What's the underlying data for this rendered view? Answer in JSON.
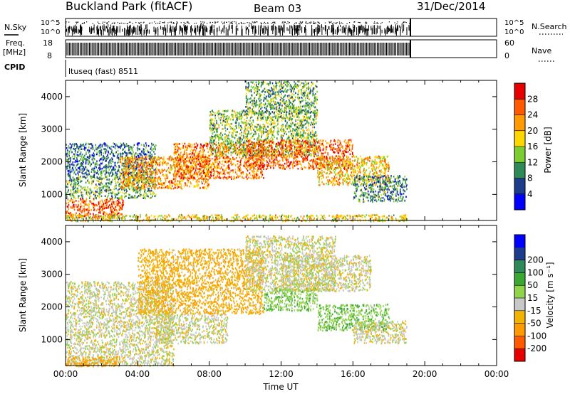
{
  "header": {
    "title": "Buckland Park (fitACF)",
    "beam": "Beam 03",
    "date": "31/Dec/2014"
  },
  "noise_panel": {
    "left_label": "N.Sky",
    "right_label": "N.Search",
    "ticks": [
      "10^5",
      "10^0"
    ]
  },
  "freq_panel": {
    "left_label": "Freq.",
    "left_unit": "[MHz]",
    "right_label": "Nave",
    "left_ticks": [
      "18",
      "8"
    ],
    "right_ticks": [
      "60",
      "0"
    ]
  },
  "cpid": {
    "label": "CPID",
    "value": "ltuseq (fast) 8511"
  },
  "colors": {
    "power_scale": [
      "#0000ff",
      "#1e3c8c",
      "#2e8b57",
      "#7ccd32",
      "#ffd700",
      "#ff9a00",
      "#ff5a00",
      "#e60000"
    ],
    "velocity_scale": [
      "#e60000",
      "#ff5a00",
      "#ff9a00",
      "#f0b400",
      "#c8c8c8",
      "#8fd44a",
      "#3aa832",
      "#2e8b57",
      "#1e3c8c",
      "#0000ff"
    ]
  },
  "chart_data": [
    {
      "type": "heatmap",
      "name": "power",
      "ylabel": "Slant Range [km]",
      "yticks": [
        "1000",
        "2000",
        "3000",
        "4000"
      ],
      "ylim": [
        200,
        4500
      ],
      "xlim": [
        0,
        24
      ],
      "data_end_hour": 19.2,
      "colorbar": {
        "label": "Power [dB]",
        "ticks": [
          "4",
          "8",
          "12",
          "16",
          "20",
          "24",
          "28"
        ],
        "range": [
          0,
          30
        ]
      },
      "regions": [
        {
          "t0": 0.0,
          "t1": 3.2,
          "r0": 300,
          "r1": 900,
          "level": 26
        },
        {
          "t0": 0.0,
          "t1": 5.0,
          "r0": 900,
          "r1": 1600,
          "level": 12
        },
        {
          "t0": 0.0,
          "t1": 5.0,
          "r0": 1600,
          "r1": 2600,
          "level": 8
        },
        {
          "t0": 3.0,
          "t1": 8.0,
          "r0": 1200,
          "r1": 2200,
          "level": 22
        },
        {
          "t0": 6.0,
          "t1": 11.0,
          "r0": 1500,
          "r1": 2600,
          "level": 24
        },
        {
          "t0": 8.0,
          "t1": 14.0,
          "r0": 2200,
          "r1": 3600,
          "level": 14
        },
        {
          "t0": 10.0,
          "t1": 16.0,
          "r0": 1800,
          "r1": 2700,
          "level": 26
        },
        {
          "t0": 14.0,
          "t1": 18.0,
          "r0": 1300,
          "r1": 2200,
          "level": 20
        },
        {
          "t0": 16.0,
          "t1": 19.0,
          "r0": 800,
          "r1": 1600,
          "level": 10
        },
        {
          "t0": 10.0,
          "t1": 14.0,
          "r0": 3500,
          "r1": 4500,
          "level": 12
        },
        {
          "t0": 0.0,
          "t1": 19.0,
          "r0": 200,
          "r1": 400,
          "level": 18
        }
      ]
    },
    {
      "type": "heatmap",
      "name": "velocity",
      "ylabel": "Slant Range [km]",
      "yticks": [
        "1000",
        "2000",
        "3000",
        "4000"
      ],
      "ylim": [
        200,
        4500
      ],
      "xlabel": "Time UT",
      "xticks": [
        "00:00",
        "04:00",
        "08:00",
        "12:00",
        "16:00",
        "20:00",
        "00:00"
      ],
      "xlim": [
        0,
        24
      ],
      "data_end_hour": 19.2,
      "colorbar": {
        "label": "Velocity [m s⁻¹]",
        "ticks": [
          "-200",
          "-100",
          "-50",
          "-15",
          "15",
          "50",
          "100",
          "200"
        ],
        "range": [
          -250,
          250
        ]
      },
      "regions": [
        {
          "t0": 0.0,
          "t1": 6.0,
          "r0": 200,
          "r1": 1200,
          "level": 0
        },
        {
          "t0": 0.0,
          "t1": 3.0,
          "r0": 200,
          "r1": 500,
          "level": -60
        },
        {
          "t0": 0.0,
          "t1": 6.0,
          "r0": 1200,
          "r1": 2800,
          "level": 0
        },
        {
          "t0": 4.0,
          "t1": 11.0,
          "r0": 1800,
          "r1": 3800,
          "level": -40
        },
        {
          "t0": 5.0,
          "t1": 9.0,
          "r0": 900,
          "r1": 1800,
          "level": 0
        },
        {
          "t0": 10.0,
          "t1": 15.0,
          "r0": 2500,
          "r1": 4200,
          "level": 0
        },
        {
          "t0": 11.0,
          "t1": 14.0,
          "r0": 1900,
          "r1": 2600,
          "level": 40
        },
        {
          "t0": 14.0,
          "t1": 18.0,
          "r0": 1300,
          "r1": 2100,
          "level": 40
        },
        {
          "t0": 16.0,
          "t1": 19.0,
          "r0": 900,
          "r1": 1600,
          "level": 0
        },
        {
          "t0": 12.0,
          "t1": 17.0,
          "r0": 2500,
          "r1": 3600,
          "level": 0
        }
      ]
    }
  ]
}
